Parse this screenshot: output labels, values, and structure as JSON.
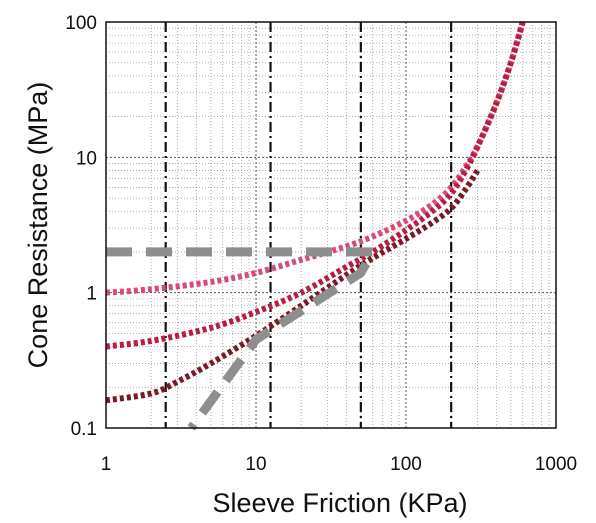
{
  "chart_data": {
    "type": "line",
    "xscale": "log",
    "yscale": "log",
    "xlim": [
      1,
      1000
    ],
    "ylim": [
      0.1,
      100
    ],
    "grid": true,
    "xlabel": "Sleeve Friction  (KPa)",
    "ylabel": "Cone Resistance  (MPa)",
    "xticks": [
      "1",
      "10",
      "100",
      "1000"
    ],
    "yticks": [
      "0.1",
      "1",
      "10",
      "100"
    ],
    "reference_lines_x": [
      2.5,
      12.5,
      50,
      200
    ],
    "series": [
      {
        "color": "#d84a78",
        "style": "dotted",
        "x": [
          1,
          2,
          5,
          10,
          20,
          40,
          60,
          100,
          150,
          200,
          250,
          300,
          400,
          500,
          600
        ],
        "y": [
          1.0,
          1.06,
          1.2,
          1.4,
          1.75,
          2.2,
          2.6,
          3.4,
          4.5,
          6.0,
          8.5,
          12,
          25,
          50,
          100
        ]
      },
      {
        "color": "#b81e42",
        "style": "dotted",
        "x": [
          1,
          2,
          5,
          10,
          20,
          40,
          60,
          100,
          150,
          200,
          250,
          300,
          400,
          500,
          600
        ],
        "y": [
          0.4,
          0.44,
          0.55,
          0.72,
          1.0,
          1.55,
          2.0,
          2.9,
          4.0,
          5.4,
          8.0,
          12,
          25,
          50,
          100
        ]
      },
      {
        "color": "#7a1a24",
        "style": "dotted",
        "x": [
          1,
          2,
          3,
          5,
          10,
          20,
          40,
          60,
          100,
          150,
          200,
          250,
          300
        ],
        "y": [
          0.16,
          0.18,
          0.22,
          0.3,
          0.48,
          0.8,
          1.35,
          1.8,
          2.5,
          3.3,
          4.2,
          5.8,
          8.0
        ]
      },
      {
        "color": "#8e8e8e",
        "style": "dashed",
        "x": [
          1,
          10,
          60,
          50,
          10,
          3.7
        ],
        "y": [
          2.0,
          2.0,
          2.0,
          1.4,
          0.45,
          0.1
        ]
      }
    ]
  }
}
